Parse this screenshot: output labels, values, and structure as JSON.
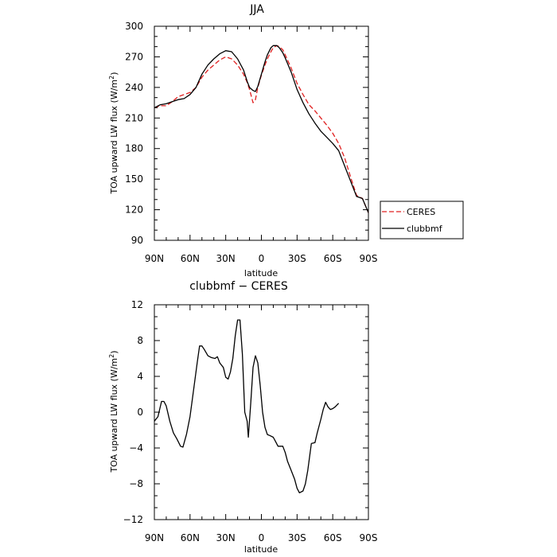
{
  "chart_data": [
    {
      "type": "line",
      "title": "JJA",
      "xlabel": "latitude",
      "ylabel": "TOA upward LW flux (W/m²)",
      "ylabel_parts": {
        "main": "TOA upward LW flux (W/m",
        "sup": "2",
        "tail": ")"
      },
      "xlim": [
        90,
        -90
      ],
      "ylim": [
        90,
        300
      ],
      "x_ticks": [
        90,
        60,
        30,
        0,
        -30,
        -60,
        -90
      ],
      "x_tick_labels": [
        "90N",
        "60N",
        "30N",
        "0",
        "30S",
        "60S",
        "90S"
      ],
      "y_ticks": [
        90,
        120,
        150,
        180,
        210,
        240,
        270,
        300
      ],
      "y_tick_labels": [
        "90",
        "120",
        "150",
        "180",
        "210",
        "240",
        "270",
        "300"
      ],
      "legend": {
        "position": "right",
        "entries": [
          "CERES",
          "clubbmf"
        ]
      },
      "series": [
        {
          "name": "CERES",
          "color": "#e02020",
          "dash": true,
          "points": [
            [
              90,
              220
            ],
            [
              85,
              222
            ],
            [
              80,
              222
            ],
            [
              75,
              226
            ],
            [
              70,
              231
            ],
            [
              65,
              233
            ],
            [
              60,
              235
            ],
            [
              55,
              240
            ],
            [
              50,
              250
            ],
            [
              45,
              257
            ],
            [
              40,
              262
            ],
            [
              35,
              267
            ],
            [
              30,
              270
            ],
            [
              25,
              268
            ],
            [
              20,
              262
            ],
            [
              15,
              253
            ],
            [
              12,
              245
            ],
            [
              10,
              238
            ],
            [
              7,
              225
            ],
            [
              5,
              228
            ],
            [
              3,
              240
            ],
            [
              0,
              252
            ],
            [
              -3,
              262
            ],
            [
              -5,
              268
            ],
            [
              -8,
              275
            ],
            [
              -10,
              279
            ],
            [
              -13,
              281
            ],
            [
              -15,
              280
            ],
            [
              -18,
              277
            ],
            [
              -20,
              272
            ],
            [
              -25,
              259
            ],
            [
              -30,
              244
            ],
            [
              -35,
              233
            ],
            [
              -40,
              223
            ],
            [
              -45,
              217
            ],
            [
              -50,
              210
            ],
            [
              -55,
              203
            ],
            [
              -60,
              195
            ],
            [
              -65,
              185
            ],
            [
              -70,
              171
            ],
            [
              -75,
              152
            ],
            [
              -80,
              134
            ],
            [
              -85,
              131
            ],
            [
              -90,
              117
            ]
          ]
        },
        {
          "name": "clubbmf",
          "color": "#000000",
          "dash": false,
          "points": [
            [
              90,
              220
            ],
            [
              85,
              223
            ],
            [
              80,
              224
            ],
            [
              75,
              226
            ],
            [
              70,
              228
            ],
            [
              65,
              229
            ],
            [
              60,
              233
            ],
            [
              55,
              240
            ],
            [
              50,
              253
            ],
            [
              45,
              262
            ],
            [
              40,
              268
            ],
            [
              35,
              273
            ],
            [
              30,
              276
            ],
            [
              25,
              275
            ],
            [
              20,
              268
            ],
            [
              15,
              257
            ],
            [
              12,
              246
            ],
            [
              10,
              240
            ],
            [
              7,
              237
            ],
            [
              5,
              236
            ],
            [
              3,
              241
            ],
            [
              0,
              253
            ],
            [
              -3,
              265
            ],
            [
              -5,
              272
            ],
            [
              -8,
              279
            ],
            [
              -10,
              281
            ],
            [
              -13,
              281
            ],
            [
              -15,
              279
            ],
            [
              -18,
              274
            ],
            [
              -20,
              269
            ],
            [
              -25,
              255
            ],
            [
              -30,
              238
            ],
            [
              -35,
              225
            ],
            [
              -40,
              214
            ],
            [
              -45,
              205
            ],
            [
              -50,
              197
            ],
            [
              -55,
              191
            ],
            [
              -60,
              185
            ],
            [
              -65,
              178
            ],
            [
              -70,
              163
            ],
            [
              -75,
              148
            ],
            [
              -80,
              133
            ],
            [
              -85,
              131
            ],
            [
              -90,
              117
            ]
          ]
        }
      ]
    },
    {
      "type": "line",
      "title": "clubbmf − CERES",
      "xlabel": "latitude",
      "ylabel": "TOA upward LW flux (W/m²)",
      "ylabel_parts": {
        "main": "TOA upward LW flux (W/m",
        "sup": "2",
        "tail": ")"
      },
      "xlim": [
        90,
        -90
      ],
      "ylim": [
        -12,
        12
      ],
      "x_ticks": [
        90,
        60,
        30,
        0,
        -30,
        -60,
        -90
      ],
      "x_tick_labels": [
        "90N",
        "60N",
        "30N",
        "0",
        "30S",
        "60S",
        "90S"
      ],
      "y_ticks": [
        -12,
        -8,
        -4,
        0,
        4,
        8,
        12
      ],
      "y_tick_labels": [
        "−12",
        "−8",
        "−4",
        "0",
        "4",
        "8",
        "12"
      ],
      "series": [
        {
          "name": "",
          "color": "#000000",
          "dash": false,
          "points": [
            [
              90,
              -1.0
            ],
            [
              87,
              -0.5
            ],
            [
              84,
              1.2
            ],
            [
              82,
              1.2
            ],
            [
              80,
              0.7
            ],
            [
              77,
              -1.0
            ],
            [
              74,
              -2.3
            ],
            [
              71,
              -3.0
            ],
            [
              68,
              -3.8
            ],
            [
              66,
              -3.9
            ],
            [
              63,
              -2.5
            ],
            [
              60,
              -0.5
            ],
            [
              57,
              2.5
            ],
            [
              54,
              5.5
            ],
            [
              52,
              7.4
            ],
            [
              50,
              7.4
            ],
            [
              48,
              7.0
            ],
            [
              45,
              6.3
            ],
            [
              42,
              6.1
            ],
            [
              39,
              6.0
            ],
            [
              37,
              6.2
            ],
            [
              35,
              5.5
            ],
            [
              32,
              5.0
            ],
            [
              30,
              3.9
            ],
            [
              28,
              3.7
            ],
            [
              26,
              4.5
            ],
            [
              24,
              6.0
            ],
            [
              22,
              8.5
            ],
            [
              20,
              10.3
            ],
            [
              18,
              10.3
            ],
            [
              16,
              6.5
            ],
            [
              14,
              0.0
            ],
            [
              12,
              -1.0
            ],
            [
              11,
              -2.8
            ],
            [
              9,
              1.0
            ],
            [
              7,
              5.0
            ],
            [
              5,
              6.3
            ],
            [
              3,
              5.5
            ],
            [
              1,
              3.0
            ],
            [
              -1,
              0.0
            ],
            [
              -3,
              -1.7
            ],
            [
              -5,
              -2.5
            ],
            [
              -7,
              -2.6
            ],
            [
              -10,
              -2.8
            ],
            [
              -12,
              -3.3
            ],
            [
              -14,
              -3.8
            ],
            [
              -18,
              -3.8
            ],
            [
              -20,
              -4.5
            ],
            [
              -22,
              -5.5
            ],
            [
              -25,
              -6.5
            ],
            [
              -28,
              -7.5
            ],
            [
              -30,
              -8.5
            ],
            [
              -32,
              -9.0
            ],
            [
              -35,
              -8.8
            ],
            [
              -37,
              -8.0
            ],
            [
              -39,
              -6.5
            ],
            [
              -41,
              -4.5
            ],
            [
              -42,
              -3.5
            ],
            [
              -45,
              -3.4
            ],
            [
              -47,
              -2.3
            ],
            [
              -50,
              -0.8
            ],
            [
              -52,
              0.3
            ],
            [
              -54,
              1.1
            ],
            [
              -56,
              0.6
            ],
            [
              -58,
              0.3
            ],
            [
              -60,
              0.4
            ],
            [
              -62,
              0.6
            ],
            [
              -65,
              1.0
            ]
          ]
        }
      ]
    }
  ]
}
